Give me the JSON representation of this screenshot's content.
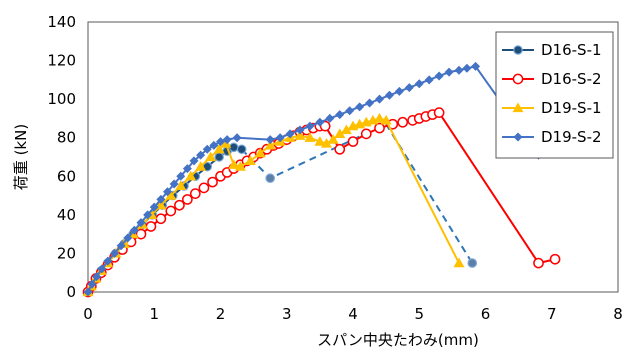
{
  "chart_data": {
    "type": "line",
    "title": "",
    "xlabel": "スパン中央たわみ(mm)",
    "ylabel": "荷重 (kN)",
    "xlim": [
      0,
      8
    ],
    "ylim": [
      0,
      140
    ],
    "x_ticks": [
      0,
      1,
      2,
      3,
      4,
      5,
      6,
      7,
      8
    ],
    "y_ticks": [
      0,
      20,
      40,
      60,
      80,
      100,
      120,
      140
    ],
    "grid": "none",
    "legend_position": "top-right",
    "series": [
      {
        "name": "D16-S-1",
        "color": "#1f4e79",
        "marker": "circle-filled",
        "points": [
          [
            0,
            0
          ],
          [
            0.05,
            3
          ],
          [
            0.12,
            7
          ],
          [
            0.2,
            11
          ],
          [
            0.3,
            15
          ],
          [
            0.42,
            20
          ],
          [
            0.55,
            25
          ],
          [
            0.68,
            30
          ],
          [
            0.82,
            35
          ],
          [
            0.97,
            40
          ],
          [
            1.12,
            45
          ],
          [
            1.28,
            50
          ],
          [
            1.45,
            55
          ],
          [
            1.62,
            60
          ],
          [
            1.8,
            65
          ],
          [
            1.98,
            70
          ],
          [
            2.1,
            73
          ],
          [
            2.2,
            75
          ],
          [
            2.32,
            74
          ]
        ],
        "dashed_points": [
          [
            2.32,
            74
          ],
          [
            2.75,
            59
          ],
          [
            4.5,
            87
          ],
          [
            5.8,
            15
          ]
        ],
        "dashed_markers": [
          [
            2.75,
            59
          ],
          [
            5.8,
            15
          ]
        ]
      },
      {
        "name": "D16-S-2",
        "color": "#ff0000",
        "marker": "circle-open",
        "points": [
          [
            0,
            0
          ],
          [
            0.05,
            3
          ],
          [
            0.12,
            7
          ],
          [
            0.2,
            10
          ],
          [
            0.3,
            14
          ],
          [
            0.4,
            18
          ],
          [
            0.52,
            22
          ],
          [
            0.65,
            26
          ],
          [
            0.8,
            30
          ],
          [
            0.95,
            34
          ],
          [
            1.1,
            38
          ],
          [
            1.25,
            42
          ],
          [
            1.38,
            45
          ],
          [
            1.5,
            48
          ],
          [
            1.62,
            51
          ],
          [
            1.75,
            54
          ],
          [
            1.88,
            57
          ],
          [
            2.0,
            60
          ],
          [
            2.1,
            62
          ],
          [
            2.2,
            64
          ],
          [
            2.3,
            66
          ],
          [
            2.4,
            68
          ],
          [
            2.5,
            70
          ],
          [
            2.6,
            72
          ],
          [
            2.7,
            74
          ],
          [
            2.8,
            76
          ],
          [
            2.88,
            77
          ],
          [
            3.0,
            79
          ],
          [
            3.1,
            81
          ],
          [
            3.2,
            83
          ],
          [
            3.3,
            84
          ],
          [
            3.4,
            85
          ],
          [
            3.5,
            86
          ],
          [
            3.58,
            86
          ],
          [
            3.8,
            74
          ],
          [
            4.0,
            78
          ],
          [
            4.2,
            82
          ],
          [
            4.4,
            85
          ],
          [
            4.6,
            87
          ],
          [
            4.75,
            88
          ],
          [
            4.9,
            89
          ],
          [
            5.0,
            90
          ],
          [
            5.1,
            91
          ],
          [
            5.2,
            92
          ],
          [
            5.3,
            93
          ],
          [
            6.8,
            15
          ],
          [
            7.05,
            17
          ]
        ]
      },
      {
        "name": "D19-S-1",
        "color": "#ffc000",
        "marker": "triangle",
        "points": [
          [
            0,
            0
          ],
          [
            0.05,
            3
          ],
          [
            0.12,
            7
          ],
          [
            0.2,
            11
          ],
          [
            0.3,
            15
          ],
          [
            0.42,
            20
          ],
          [
            0.55,
            25
          ],
          [
            0.68,
            30
          ],
          [
            0.82,
            35
          ],
          [
            0.96,
            40
          ],
          [
            1.1,
            45
          ],
          [
            1.25,
            50
          ],
          [
            1.4,
            55
          ],
          [
            1.55,
            60
          ],
          [
            1.7,
            65
          ],
          [
            1.85,
            70
          ],
          [
            1.98,
            74
          ],
          [
            2.08,
            77
          ],
          [
            2.2,
            66
          ],
          [
            2.3,
            65
          ],
          [
            2.45,
            68
          ],
          [
            2.6,
            72
          ],
          [
            2.75,
            76
          ],
          [
            2.9,
            78
          ],
          [
            3.05,
            80
          ],
          [
            3.2,
            81
          ],
          [
            3.35,
            80
          ],
          [
            3.5,
            78
          ],
          [
            3.6,
            77
          ],
          [
            3.7,
            79
          ],
          [
            3.8,
            82
          ],
          [
            3.9,
            84
          ],
          [
            4.0,
            86
          ],
          [
            4.1,
            87
          ],
          [
            4.2,
            88
          ],
          [
            4.3,
            89
          ],
          [
            4.4,
            90
          ],
          [
            4.5,
            89
          ],
          [
            5.6,
            15
          ]
        ]
      },
      {
        "name": "D19-S-2",
        "color": "#4472c4",
        "marker": "diamond",
        "points": [
          [
            0,
            0
          ],
          [
            0.06,
            4
          ],
          [
            0.13,
            8
          ],
          [
            0.21,
            12
          ],
          [
            0.3,
            16
          ],
          [
            0.4,
            20
          ],
          [
            0.5,
            24
          ],
          [
            0.6,
            28
          ],
          [
            0.7,
            32
          ],
          [
            0.8,
            36
          ],
          [
            0.9,
            40
          ],
          [
            1.0,
            44
          ],
          [
            1.1,
            48
          ],
          [
            1.2,
            52
          ],
          [
            1.3,
            56
          ],
          [
            1.4,
            60
          ],
          [
            1.5,
            64
          ],
          [
            1.6,
            68
          ],
          [
            1.7,
            71
          ],
          [
            1.8,
            74
          ],
          [
            1.9,
            76
          ],
          [
            2.0,
            78
          ],
          [
            2.1,
            79
          ],
          [
            2.25,
            80
          ],
          [
            2.75,
            79
          ],
          [
            2.9,
            80
          ],
          [
            3.05,
            82
          ],
          [
            3.2,
            84
          ],
          [
            3.35,
            86
          ],
          [
            3.5,
            88
          ],
          [
            3.65,
            90
          ],
          [
            3.8,
            92
          ],
          [
            3.95,
            94
          ],
          [
            4.1,
            96
          ],
          [
            4.25,
            98
          ],
          [
            4.4,
            100
          ],
          [
            4.55,
            102
          ],
          [
            4.7,
            104
          ],
          [
            4.85,
            106
          ],
          [
            5.0,
            108
          ],
          [
            5.15,
            110
          ],
          [
            5.3,
            112
          ],
          [
            5.45,
            114
          ],
          [
            5.6,
            115
          ],
          [
            5.72,
            116
          ],
          [
            5.85,
            117
          ],
          [
            6.8,
            71
          ]
        ]
      }
    ]
  }
}
